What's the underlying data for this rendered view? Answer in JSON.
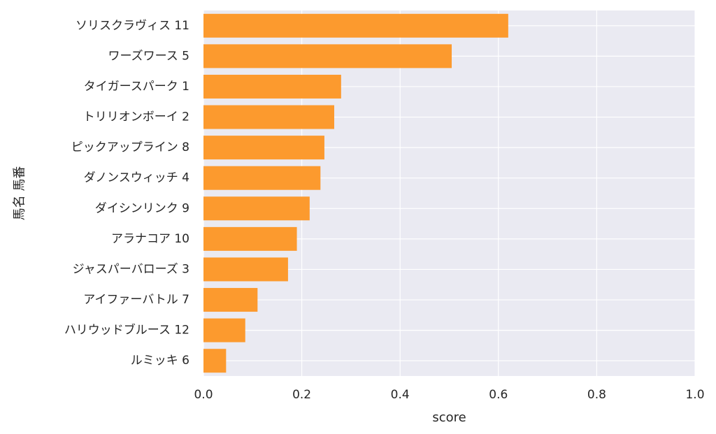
{
  "chart_data": {
    "type": "bar",
    "orientation": "horizontal",
    "categories": [
      "ソリスクラヴィス 11",
      "ワーズワース 5",
      "タイガースパーク 1",
      "トリリオンボーイ 2",
      "ピックアップライン 8",
      "ダノンスウィッチ 4",
      "ダイシンリンク 9",
      "アラナコア 10",
      "ジャスパーバローズ 3",
      "アイファーバトル 7",
      "ハリウッドブルース 12",
      "ルミッキ 6"
    ],
    "values": [
      0.62,
      0.505,
      0.28,
      0.266,
      0.246,
      0.238,
      0.216,
      0.19,
      0.172,
      0.11,
      0.085,
      0.046
    ],
    "xlabel": "score",
    "ylabel": "馬名 馬番",
    "xlim": [
      0,
      1.0
    ],
    "xticks": [
      "0.0",
      "0.2",
      "0.4",
      "0.6",
      "0.8",
      "1.0"
    ],
    "grid": true,
    "legend": "none",
    "colors": {
      "bar": "#fc9a2e",
      "plot_background": "#eaeaf2",
      "grid": "#ffffff",
      "text": "#262626"
    }
  }
}
